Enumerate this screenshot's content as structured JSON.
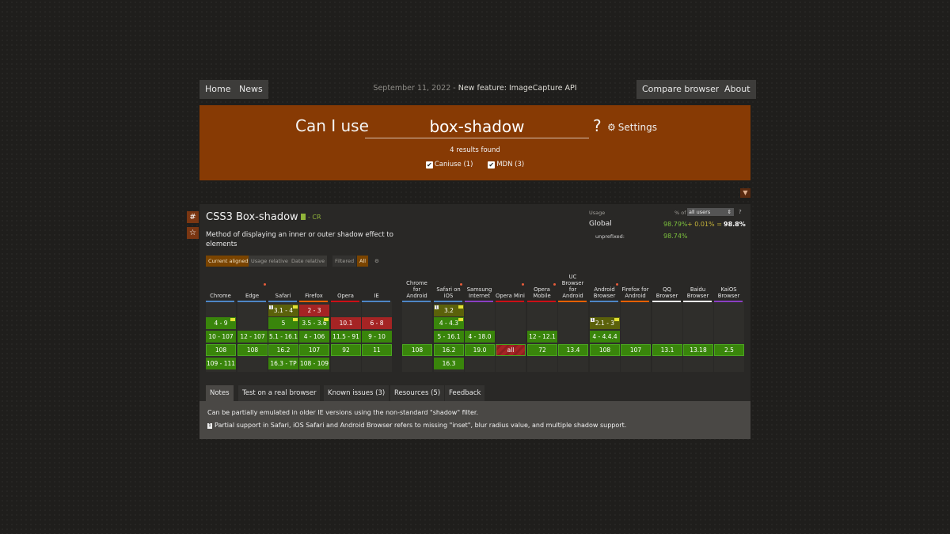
{
  "topnav": {
    "home": "Home",
    "news": "News",
    "announce_date": "September 11, 2022",
    "announce_sep": " - ",
    "announce_text": "New feature: ImageCapture API",
    "compare": "Compare browsers",
    "about": "About"
  },
  "search": {
    "prefix": "Can I use",
    "query": "box-shadow",
    "suffix": "?",
    "settings": "Settings",
    "results": "4 results found",
    "filter_caniuse": "Caniuse (1)",
    "filter_mdn": "MDN (3)"
  },
  "feature": {
    "title": "CSS3 Box-shadow",
    "status": "- CR",
    "description": "Method of displaying an inner or outer shadow effect to elements",
    "usage_label": "Usage",
    "pct_of": "% of",
    "users": "all users",
    "usage_help": "?",
    "global_label": "Global",
    "global_supported": "98.79%",
    "global_partial": "+ 0.01%",
    "global_eq": "=",
    "global_total": "98.8%",
    "unprefixed_label": "unprefixed:",
    "unprefixed_value": "98.74%",
    "view_tabs": [
      "Current aligned",
      "Usage relative",
      "Date relative"
    ],
    "filtered_label": "Filtered",
    "filtered_value": "All",
    "colors": {
      "supported": "#39850b",
      "partial": "#5b610a",
      "unsupported": "#a52424",
      "header": "#873a04"
    }
  },
  "browsers": [
    {
      "name": "Chrome",
      "line": "#4e86c5",
      "cells": {
        "2": {
          "t": "4 - 9",
          "s": "y",
          "p": 1
        },
        "3": {
          "t": "10 - 107",
          "s": "y"
        },
        "4": {
          "t": "108",
          "s": "y",
          "cur": 1
        },
        "5": {
          "t": "109 - 111",
          "s": "y"
        }
      }
    },
    {
      "name": "Edge",
      "line": "#4e86c5",
      "flag": 1,
      "cells": {
        "3": {
          "t": "12 - 107",
          "s": "y"
        },
        "4": {
          "t": "108",
          "s": "y",
          "cur": 1
        }
      }
    },
    {
      "name": "Safari",
      "line": "#4e86c5",
      "cells": {
        "1": {
          "t": "3.1 - 4",
          "s": "a",
          "note": 1,
          "p": 1
        },
        "2": {
          "t": "5",
          "s": "y",
          "p": 1
        },
        "3": {
          "t": "5.1 - 16.1",
          "s": "y"
        },
        "4": {
          "t": "16.2",
          "s": "y",
          "cur": 1
        },
        "5": {
          "t": "16.3 - TP",
          "s": "y"
        }
      }
    },
    {
      "name": "Firefox",
      "line": "#e66000",
      "cells": {
        "1": {
          "t": "2 - 3",
          "s": "n"
        },
        "2": {
          "t": "3.5 - 3.6",
          "s": "y",
          "p": 1
        },
        "3": {
          "t": "4 - 106",
          "s": "y"
        },
        "4": {
          "t": "107",
          "s": "y",
          "cur": 1
        },
        "5": {
          "t": "108 - 109",
          "s": "y"
        }
      }
    },
    {
      "name": "Opera",
      "line": "#cc0f16",
      "cells": {
        "2": {
          "t": "10.1",
          "s": "n"
        },
        "3": {
          "t": "11.5 - 91",
          "s": "y"
        },
        "4": {
          "t": "92",
          "s": "y",
          "cur": 1
        }
      }
    },
    {
      "name": "IE",
      "line": "#4e86c5",
      "cells": {
        "2": {
          "t": "6 - 8",
          "s": "n"
        },
        "3": {
          "t": "9 - 10",
          "s": "y"
        },
        "4": {
          "t": "11",
          "s": "y",
          "cur": 1
        }
      }
    },
    {
      "name": "Chrome for Android",
      "line": "#4e86c5",
      "cells": {
        "4": {
          "t": "108",
          "s": "y",
          "cur": 1
        }
      }
    },
    {
      "name": "Safari on iOS",
      "line": "#4e86c5",
      "flag": 1,
      "cells": {
        "1": {
          "t": "3.2",
          "s": "a",
          "note": 1,
          "p": 1
        },
        "2": {
          "t": "4 - 4.3",
          "s": "y",
          "p": 1
        },
        "3": {
          "t": "5 - 16.1",
          "s": "y"
        },
        "4": {
          "t": "16.2",
          "s": "y",
          "cur": 1
        },
        "5": {
          "t": "16.3",
          "s": "y"
        }
      }
    },
    {
      "name": "Samsung Internet",
      "line": "#8a3fc2",
      "cells": {
        "3": {
          "t": "4 - 18.0",
          "s": "y"
        },
        "4": {
          "t": "19.0",
          "s": "y",
          "cur": 1
        }
      }
    },
    {
      "name": "Opera Mini",
      "line": "#cc0f16",
      "flag": 1,
      "cells": {
        "4": {
          "t": "all",
          "s": "n",
          "cur": 1
        }
      }
    },
    {
      "name": "Opera Mobile",
      "line": "#cc0f16",
      "flag": 1,
      "cells": {
        "3": {
          "t": "12 - 12.1",
          "s": "y"
        },
        "4": {
          "t": "72",
          "s": "y",
          "cur": 1
        }
      }
    },
    {
      "name": "UC Browser for Android",
      "line": "#e66000",
      "cells": {
        "4": {
          "t": "13.4",
          "s": "y",
          "cur": 1
        }
      }
    },
    {
      "name": "Android Browser",
      "line": "#4e86c5",
      "flag": 1,
      "cells": {
        "2": {
          "t": "2.1 - 3",
          "s": "a",
          "note": 1,
          "p": 1
        },
        "3": {
          "t": "4 - 4.4.4",
          "s": "y"
        },
        "4": {
          "t": "108",
          "s": "y",
          "cur": 1
        }
      }
    },
    {
      "name": "Firefox for Android",
      "line": "#e66000",
      "cells": {
        "4": {
          "t": "107",
          "s": "y",
          "cur": 1
        }
      }
    },
    {
      "name": "QQ Browser",
      "line": "#eeeeee",
      "cells": {
        "4": {
          "t": "13.1",
          "s": "y",
          "cur": 1
        }
      }
    },
    {
      "name": "Baidu Browser",
      "line": "#eeeeee",
      "cells": {
        "4": {
          "t": "13.18",
          "s": "y",
          "cur": 1
        }
      }
    },
    {
      "name": "KaiOS Browser",
      "line": "#8a3fc2",
      "cells": {
        "4": {
          "t": "2.5",
          "s": "y",
          "cur": 1
        }
      }
    }
  ],
  "tabs": [
    "Notes",
    "Test on a real browser",
    "Known issues (3)",
    "Resources (5)",
    "Feedback"
  ],
  "notes": {
    "main": "Can be partially emulated in older IE versions using the non-standard \"shadow\" filter.",
    "footnote_num": "1",
    "footnote": "Partial support in Safari, iOS Safari and Android Browser refers to missing \"inset\", blur radius value, and multiple shadow support."
  }
}
